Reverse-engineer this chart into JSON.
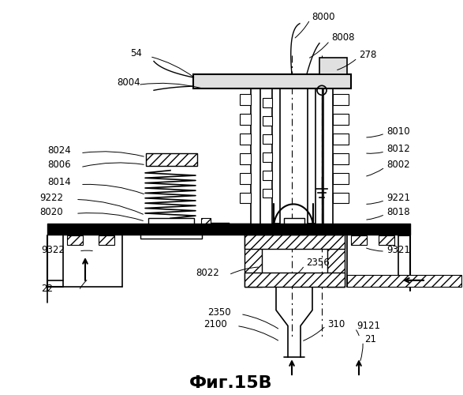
{
  "title": "Фиг.15В",
  "bg": "#ffffff",
  "lc": "#000000",
  "fig_width": 5.87,
  "fig_height": 5.0,
  "dpi": 100
}
